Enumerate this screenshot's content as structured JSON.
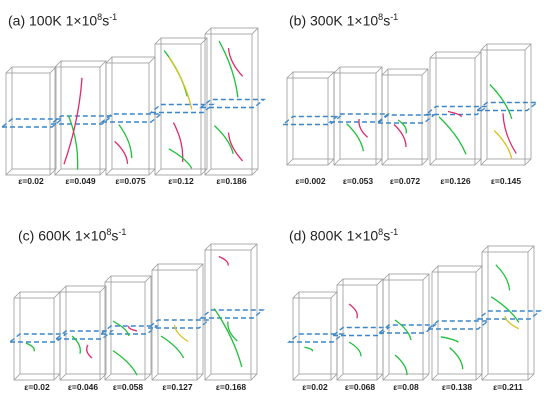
{
  "panels": [
    {
      "label": "(a)",
      "temperature": "100K",
      "rate_mantissa": "1",
      "rate_sep": "×",
      "rate_base": "10",
      "rate_exp": "8",
      "rate_unit": "s",
      "rate_unit_exp": "-1",
      "strains": [
        "ε=0.02",
        "ε=0.049",
        "ε=0.075",
        "ε=0.12",
        "ε=0.186"
      ]
    },
    {
      "label": "(b)",
      "temperature": "300K",
      "rate_mantissa": "1",
      "rate_sep": "×",
      "rate_base": "10",
      "rate_exp": "8",
      "rate_unit": "s",
      "rate_unit_exp": "-1",
      "strains": [
        "ε=0.002",
        "ε=0.053",
        "ε=0.072",
        "ε=0.126",
        "ε=0.145"
      ]
    },
    {
      "label": "(c)",
      "temperature": "600K",
      "rate_mantissa": "1",
      "rate_sep": "×",
      "rate_base": "10",
      "rate_exp": "8",
      "rate_unit": "s",
      "rate_unit_exp": "-1",
      "strains": [
        "ε=0.02",
        "ε=0.046",
        "ε=0.058",
        "ε=0.127",
        "ε=0.168"
      ]
    },
    {
      "label": "(d)",
      "temperature": "800K",
      "rate_mantissa": "1",
      "rate_sep": "×",
      "rate_base": "10",
      "rate_exp": "8",
      "rate_unit": "s",
      "rate_unit_exp": "-1",
      "strains": [
        "ε=0.02",
        "ε=0.068",
        "ε=0.08",
        "ε=0.138",
        "ε=0.211"
      ]
    }
  ],
  "colors": {
    "box_edge": "#9a9a9a",
    "cut_plane": "#3a86c8",
    "dislocation_main": "#1fbf3a",
    "dislocation_secondary": "#e02a6a",
    "dislocation_other": "#d6c21f"
  }
}
